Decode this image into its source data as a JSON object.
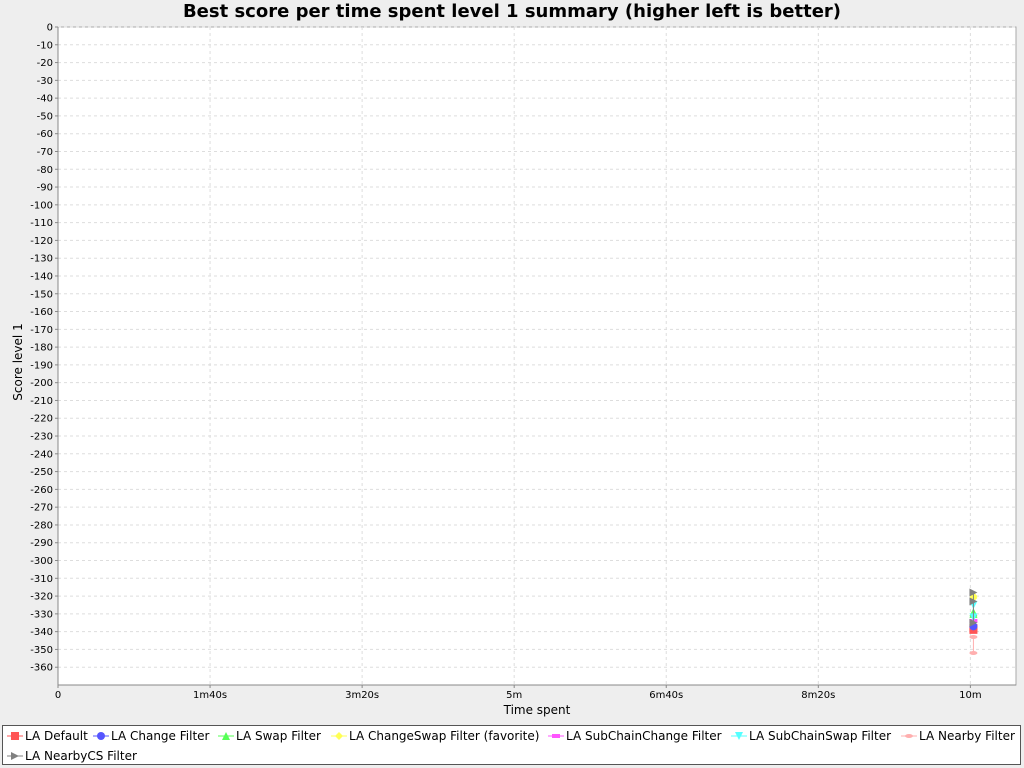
{
  "chart_data": {
    "type": "scatter",
    "title": "Best score per time spent level 1 summary (higher left is better)",
    "xlabel": "Time spent",
    "ylabel": "Score level 1",
    "x_unit": "seconds",
    "xlim": [
      0,
      630
    ],
    "ylim": [
      -370,
      0
    ],
    "x_ticks": [
      {
        "value": 0,
        "label": "0"
      },
      {
        "value": 100,
        "label": "1m40s"
      },
      {
        "value": 200,
        "label": "3m20s"
      },
      {
        "value": 300,
        "label": "5m"
      },
      {
        "value": 400,
        "label": "6m40s"
      },
      {
        "value": 500,
        "label": "8m20s"
      },
      {
        "value": 600,
        "label": "10m"
      }
    ],
    "y_ticks": [
      0,
      -10,
      -20,
      -30,
      -40,
      -50,
      -60,
      -70,
      -80,
      -90,
      -100,
      -110,
      -120,
      -130,
      -140,
      -150,
      -160,
      -170,
      -180,
      -190,
      -200,
      -210,
      -220,
      -230,
      -240,
      -250,
      -260,
      -270,
      -280,
      -290,
      -300,
      -310,
      -320,
      -330,
      -340,
      -350,
      -360
    ],
    "grid": true,
    "legend_position": "bottom",
    "series": [
      {
        "name": "LA Default",
        "color": "#ff5555",
        "marker": "square",
        "points": [
          [
            602,
            -339
          ],
          [
            602,
            -338
          ]
        ]
      },
      {
        "name": "LA Change Filter",
        "color": "#5555ff",
        "marker": "circle",
        "points": [
          [
            602,
            -337
          ]
        ]
      },
      {
        "name": "LA Swap Filter",
        "color": "#55ff55",
        "marker": "triangle-up",
        "points": [
          [
            602,
            -329
          ],
          [
            602,
            -330
          ]
        ]
      },
      {
        "name": "LA ChangeSwap Filter (favorite)",
        "color": "#ffff55",
        "marker": "diamond",
        "points": [
          [
            602,
            -320
          ],
          [
            602,
            -321
          ]
        ]
      },
      {
        "name": "LA SubChainChange Filter",
        "color": "#ff55ff",
        "marker": "rect-h",
        "points": [
          [
            602,
            -334
          ]
        ]
      },
      {
        "name": "LA SubChainSwap Filter",
        "color": "#55ffff",
        "marker": "triangle-down",
        "points": [
          [
            602,
            -325
          ],
          [
            602,
            -332
          ]
        ]
      },
      {
        "name": "LA Nearby Filter",
        "color": "#ffafaf",
        "marker": "ellipse-h",
        "points": [
          [
            602,
            -352
          ],
          [
            602,
            -343
          ]
        ]
      },
      {
        "name": "LA NearbyCS Filter",
        "color": "#808080",
        "marker": "triangle-right",
        "points": [
          [
            602,
            -318
          ],
          [
            602,
            -323
          ],
          [
            602,
            -335
          ]
        ]
      }
    ]
  }
}
